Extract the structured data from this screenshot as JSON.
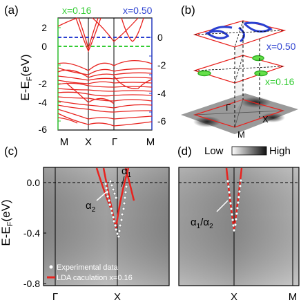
{
  "panels": {
    "a": {
      "label": "(a)",
      "x_top_left": "x=0.16",
      "x_top_right": "x=0.50",
      "ylabel": "E-E",
      "ylabel_sub": "F",
      "ylabel_unit": "(eV)",
      "left_ticks": [
        "2",
        "0",
        "-2",
        "-4",
        "-6"
      ],
      "right_ticks": [
        "0",
        "-2",
        "-4",
        "-6"
      ],
      "k_labels": [
        "M",
        "X",
        "Γ",
        "M"
      ],
      "colors": {
        "bands": "#e8231f",
        "x016": "#33cc33",
        "x050": "#2a3fd0"
      }
    },
    "b": {
      "label": "(b)",
      "x_top": "x=0.50",
      "x_bottom": "x=0.16",
      "sym_gamma": "Γ",
      "sym_M": "M",
      "sym_X": "X"
    },
    "c": {
      "label": "(c)",
      "ylabel": "E-E",
      "ylabel_sub": "F",
      "ylabel_unit": "(eV)",
      "y_ticks": [
        "0.0",
        "-0.4",
        "-0.8"
      ],
      "k_labels": [
        "Γ",
        "X"
      ],
      "alpha1": "α",
      "alpha1_sub": "1",
      "alpha2": "α",
      "alpha2_sub": "2",
      "legend_exp": "Experimental data",
      "legend_lda": "LDA caculation x=0.16"
    },
    "d": {
      "label": "(d)",
      "k_labels": [
        "X",
        "M"
      ],
      "alpha_a": "α",
      "alpha_a_sub": "1",
      "alpha_sep": "/α",
      "alpha_b_sub": "2"
    },
    "colorbar": {
      "low": "Low",
      "high": "High"
    }
  }
}
